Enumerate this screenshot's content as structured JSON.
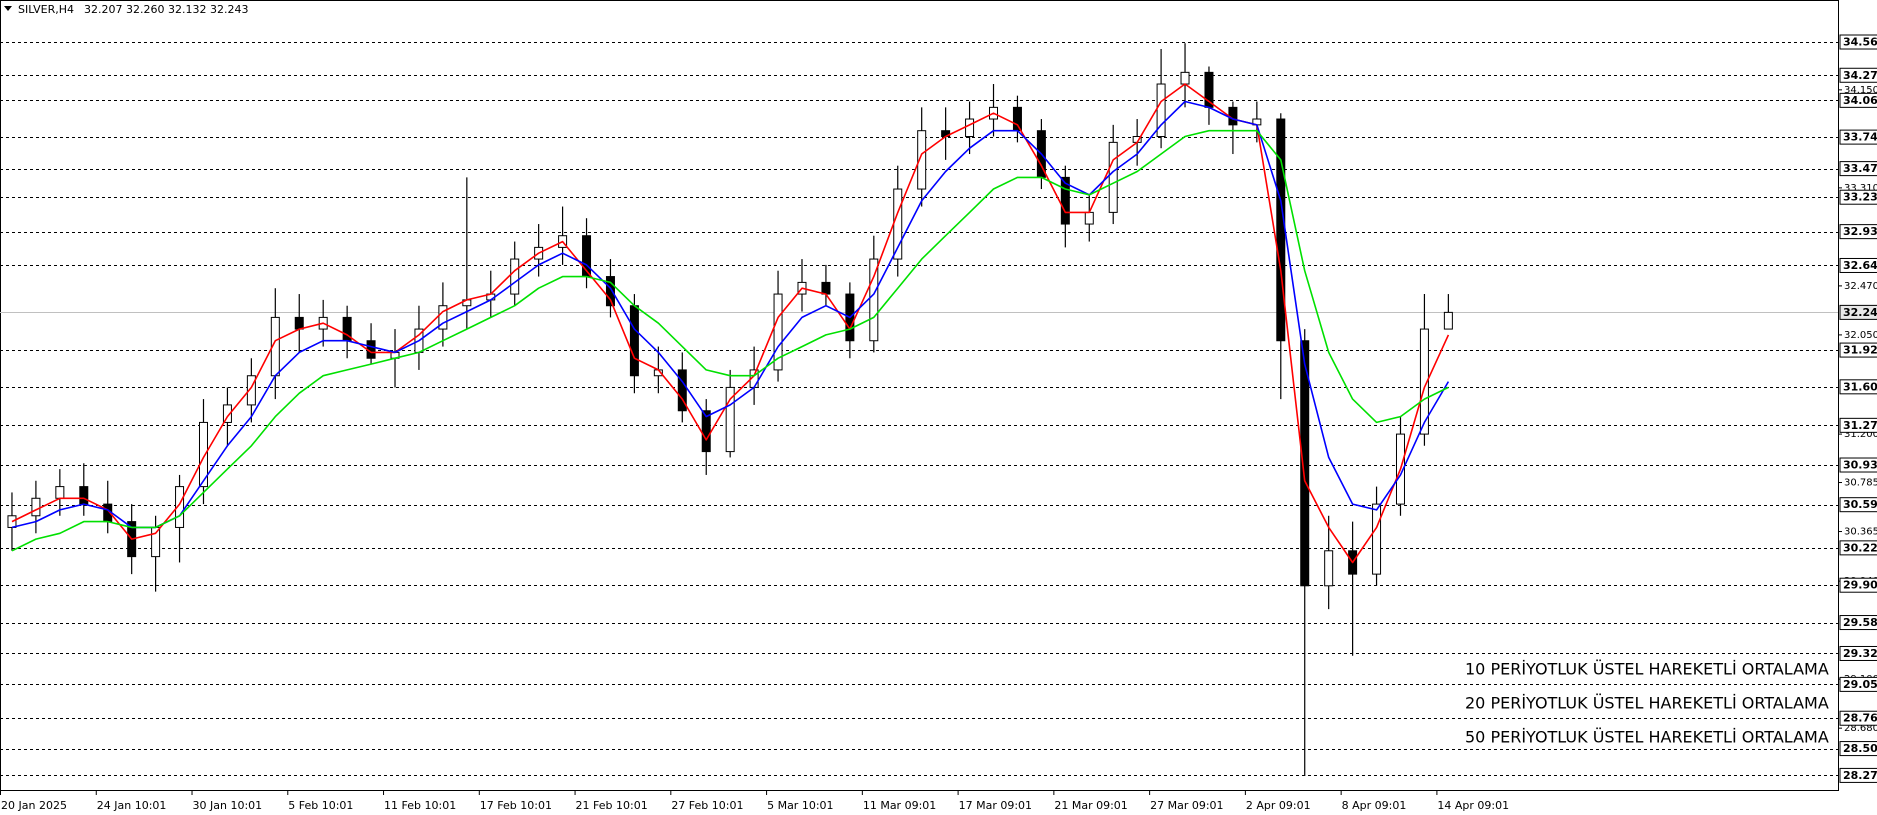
{
  "chart_data": {
    "type": "candlestick",
    "title": "SILVER,H4",
    "quote": "32.207 32.260 32.132 32.243",
    "x_labels": [
      "20 Jan 2025",
      "24 Jan 10:01",
      "30 Jan 10:01",
      "5 Feb 10:01",
      "11 Feb 10:01",
      "17 Feb 10:01",
      "21 Feb 10:01",
      "27 Feb 10:01",
      "5 Mar 10:01",
      "11 Mar 09:01",
      "17 Mar 09:01",
      "21 Mar 09:01",
      "27 Mar 09:01",
      "2 Apr 09:01",
      "8 Apr 09:01",
      "14 Apr 09:01"
    ],
    "ylim": [
      28.15,
      34.92
    ],
    "open": [
      30.4,
      30.5,
      30.65,
      30.75,
      30.6,
      30.45,
      30.15,
      30.4,
      30.75,
      31.3,
      31.45,
      31.7,
      32.2,
      32.1,
      32.2,
      32.0,
      31.85,
      31.9,
      32.1,
      32.3,
      32.35,
      32.4,
      32.7,
      32.8,
      32.9,
      32.55,
      32.3,
      31.7,
      31.75,
      31.4,
      31.05,
      31.6,
      31.75,
      32.4,
      32.5,
      32.4,
      32.0,
      32.7,
      33.3,
      33.8,
      33.75,
      33.9,
      34.0,
      33.8,
      33.4,
      33.0,
      33.1,
      33.7,
      33.75,
      34.2,
      34.3,
      34.0,
      33.85,
      33.9,
      32.0,
      29.9,
      30.2,
      30.0,
      30.6,
      31.2,
      32.1
    ],
    "high": [
      30.7,
      30.8,
      30.9,
      30.95,
      30.8,
      30.6,
      30.5,
      30.85,
      31.5,
      31.6,
      31.85,
      32.45,
      32.4,
      32.35,
      32.3,
      32.15,
      32.1,
      32.3,
      32.5,
      33.4,
      32.6,
      32.85,
      33.0,
      33.15,
      33.05,
      32.7,
      32.4,
      31.95,
      31.9,
      31.5,
      31.75,
      31.95,
      32.6,
      32.7,
      32.65,
      32.5,
      32.9,
      33.5,
      34.0,
      34.0,
      34.05,
      34.2,
      34.1,
      33.9,
      33.5,
      33.25,
      33.85,
      33.9,
      34.5,
      34.55,
      34.35,
      34.05,
      34.05,
      33.95,
      32.1,
      30.5,
      30.45,
      30.75,
      31.35,
      32.4,
      32.4
    ],
    "low": [
      30.2,
      30.35,
      30.5,
      30.5,
      30.35,
      30.0,
      29.85,
      30.1,
      30.6,
      31.1,
      31.3,
      31.5,
      31.9,
      31.95,
      31.85,
      31.8,
      31.6,
      31.75,
      31.95,
      32.1,
      32.2,
      32.3,
      32.55,
      32.65,
      32.45,
      32.2,
      31.55,
      31.55,
      31.3,
      30.85,
      31.0,
      31.45,
      31.65,
      32.25,
      32.3,
      31.85,
      31.9,
      32.55,
      33.15,
      33.55,
      33.6,
      33.75,
      33.7,
      33.3,
      32.8,
      32.85,
      33.0,
      33.5,
      33.65,
      34.0,
      33.85,
      33.6,
      33.7,
      31.5,
      28.27,
      29.7,
      29.3,
      29.9,
      30.5,
      31.1,
      32.1
    ],
    "close": [
      30.5,
      30.65,
      30.75,
      30.6,
      30.45,
      30.15,
      30.4,
      30.75,
      31.3,
      31.45,
      31.7,
      32.2,
      32.1,
      32.2,
      32.0,
      31.85,
      31.9,
      32.1,
      32.3,
      32.35,
      32.4,
      32.7,
      32.8,
      32.9,
      32.55,
      32.3,
      31.7,
      31.75,
      31.4,
      31.05,
      31.6,
      31.75,
      32.4,
      32.5,
      32.4,
      32.0,
      32.7,
      33.3,
      33.8,
      33.75,
      33.9,
      34.0,
      33.8,
      33.4,
      33.0,
      33.1,
      33.7,
      33.75,
      34.2,
      34.3,
      34.0,
      33.85,
      33.9,
      32.0,
      29.9,
      30.2,
      30.0,
      30.6,
      31.2,
      32.1,
      32.243
    ],
    "series": [
      {
        "name": "10 PERİYOTLUK ÜSTEL HAREKETLİ ORTALAMA",
        "color": "#ff0000",
        "values": [
          30.45,
          30.55,
          30.65,
          30.65,
          30.55,
          30.3,
          30.35,
          30.6,
          31.0,
          31.35,
          31.6,
          32.0,
          32.1,
          32.15,
          32.05,
          31.9,
          31.9,
          32.05,
          32.25,
          32.35,
          32.4,
          32.6,
          32.75,
          32.85,
          32.6,
          32.35,
          31.85,
          31.75,
          31.5,
          31.15,
          31.5,
          31.7,
          32.2,
          32.45,
          32.4,
          32.1,
          32.55,
          33.1,
          33.6,
          33.75,
          33.85,
          33.95,
          33.85,
          33.5,
          33.1,
          33.1,
          33.55,
          33.7,
          34.05,
          34.2,
          34.05,
          33.9,
          33.85,
          32.6,
          30.8,
          30.4,
          30.1,
          30.4,
          30.9,
          31.6,
          32.05
        ]
      },
      {
        "name": "20 PERİYOTLUK ÜSTEL HAREKETLİ ORTALAMA",
        "color": "#0000ff",
        "values": [
          30.4,
          30.45,
          30.55,
          30.6,
          30.55,
          30.4,
          30.4,
          30.5,
          30.8,
          31.1,
          31.35,
          31.7,
          31.9,
          32.0,
          32.0,
          31.95,
          31.9,
          32.0,
          32.15,
          32.25,
          32.35,
          32.5,
          32.65,
          32.75,
          32.65,
          32.45,
          32.1,
          31.9,
          31.65,
          31.35,
          31.45,
          31.6,
          31.95,
          32.2,
          32.3,
          32.2,
          32.4,
          32.8,
          33.2,
          33.45,
          33.65,
          33.8,
          33.8,
          33.6,
          33.35,
          33.25,
          33.45,
          33.6,
          33.85,
          34.05,
          34.0,
          33.9,
          33.85,
          33.2,
          31.8,
          31.0,
          30.6,
          30.55,
          30.85,
          31.3,
          31.65
        ]
      },
      {
        "name": "50 PERİYOTLUK ÜSTEL HAREKETLİ ORTALAMA",
        "color": "#00e000",
        "values": [
          30.2,
          30.3,
          30.35,
          30.45,
          30.45,
          30.4,
          30.4,
          30.5,
          30.7,
          30.9,
          31.1,
          31.35,
          31.55,
          31.7,
          31.75,
          31.8,
          31.85,
          31.9,
          32.0,
          32.1,
          32.2,
          32.3,
          32.45,
          32.55,
          32.55,
          32.5,
          32.3,
          32.15,
          31.95,
          31.75,
          31.7,
          31.7,
          31.85,
          31.95,
          32.05,
          32.1,
          32.2,
          32.45,
          32.7,
          32.9,
          33.1,
          33.3,
          33.4,
          33.4,
          33.3,
          33.25,
          33.35,
          33.45,
          33.6,
          33.75,
          33.8,
          33.8,
          33.8,
          33.55,
          32.6,
          31.9,
          31.5,
          31.3,
          31.35,
          31.5,
          31.6
        ]
      }
    ],
    "yticks": [
      {
        "value": 34.15,
        "label": "34.150"
      },
      {
        "value": 33.31,
        "label": "33.310"
      },
      {
        "value": 32.47,
        "label": "32.470"
      },
      {
        "value": 32.05,
        "label": "32.050"
      },
      {
        "value": 31.2,
        "label": "31.200"
      },
      {
        "value": 30.785,
        "label": "30.785"
      },
      {
        "value": 30.365,
        "label": "30.365"
      },
      {
        "value": 29.94,
        "label": "29.940"
      },
      {
        "value": 29.1,
        "label": "29.100"
      },
      {
        "value": 28.68,
        "label": "28.680"
      }
    ],
    "levels": [
      {
        "value": 34.56,
        "label": "34.560"
      },
      {
        "value": 34.275,
        "label": "34.275"
      },
      {
        "value": 34.06,
        "label": "34.060"
      },
      {
        "value": 33.745,
        "label": "33.745"
      },
      {
        "value": 33.475,
        "label": "33.475"
      },
      {
        "value": 33.23,
        "label": "33.230"
      },
      {
        "value": 32.935,
        "label": "32.935"
      },
      {
        "value": 32.645,
        "label": "32.645"
      },
      {
        "value": 31.92,
        "label": "31.920"
      },
      {
        "value": 31.605,
        "label": "31.605"
      },
      {
        "value": 31.275,
        "label": "31.275"
      },
      {
        "value": 30.935,
        "label": "30.935"
      },
      {
        "value": 30.595,
        "label": "30.595"
      },
      {
        "value": 30.225,
        "label": "30.225"
      },
      {
        "value": 29.905,
        "label": "29.905"
      },
      {
        "value": 29.585,
        "label": "29.585"
      },
      {
        "value": 29.32,
        "label": "29.320"
      },
      {
        "value": 29.055,
        "label": "29.055"
      },
      {
        "value": 28.765,
        "label": "28.765"
      },
      {
        "value": 28.505,
        "label": "28.505"
      },
      {
        "value": 28.275,
        "label": "28.275"
      }
    ],
    "current_price": {
      "value": 32.243,
      "label": "32.243"
    }
  }
}
